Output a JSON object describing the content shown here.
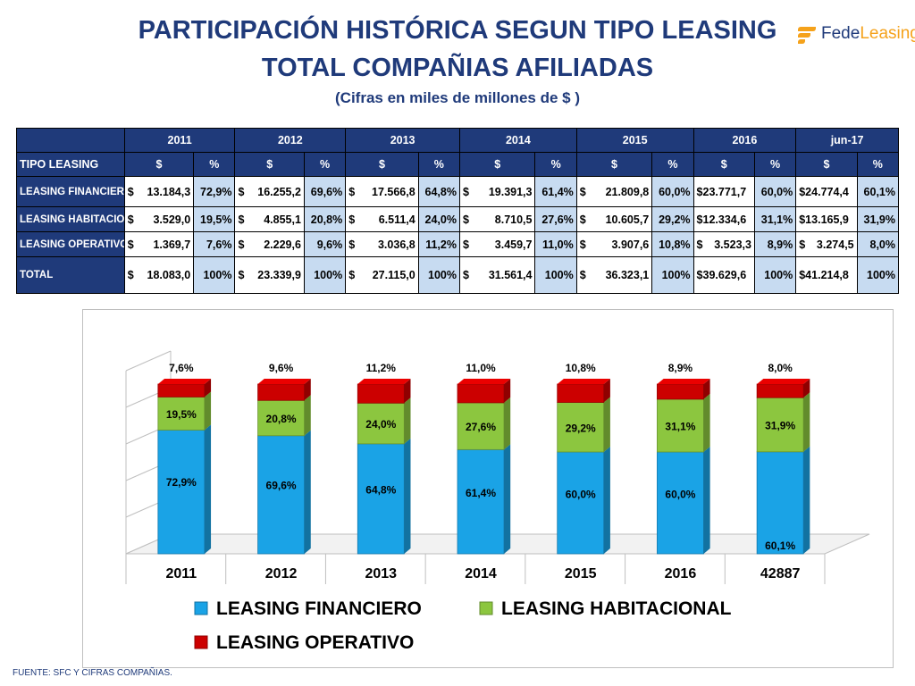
{
  "header": {
    "title_line1": "PARTICIPACIÓN HISTÓRICA SEGUN TIPO LEASING",
    "title_line2": "TOTAL COMPAÑIAS AFILIADAS",
    "subtitle": "(Cifras en miles de millones de $ )",
    "logo_part1": "Fede",
    "logo_part2": "Leasing"
  },
  "table": {
    "years": [
      "2011",
      "2012",
      "2013",
      "2014",
      "2015",
      "2016",
      "jun-17"
    ],
    "col_header": "TIPO LEASING",
    "currency_label": "$",
    "pct_label": "%",
    "rows": [
      {
        "label": "LEASING FINANCIERO",
        "cells": [
          [
            "$",
            "13.184,3",
            "72,9%"
          ],
          [
            "$",
            "16.255,2",
            "69,6%"
          ],
          [
            "$",
            "17.566,8",
            "64,8%"
          ],
          [
            "$",
            "19.391,3",
            "61,4%"
          ],
          [
            "$",
            "21.809,8",
            "60,0%"
          ],
          [
            "",
            "$23.771,7",
            "60,0%"
          ],
          [
            "",
            "$24.774,4",
            "60,1%"
          ]
        ]
      },
      {
        "label": "LEASING HABITACIONAL",
        "cells": [
          [
            "$",
            "3.529,0",
            "19,5%"
          ],
          [
            "$",
            "4.855,1",
            "20,8%"
          ],
          [
            "$",
            "6.511,4",
            "24,0%"
          ],
          [
            "$",
            "8.710,5",
            "27,6%"
          ],
          [
            "$",
            "10.605,7",
            "29,2%"
          ],
          [
            "",
            "$12.334,6",
            "31,1%"
          ],
          [
            "",
            "$13.165,9",
            "31,9%"
          ]
        ]
      },
      {
        "label": "LEASING OPERATIVO",
        "cells": [
          [
            "$",
            "1.369,7",
            "7,6%"
          ],
          [
            "$",
            "2.229,6",
            "9,6%"
          ],
          [
            "$",
            "3.036,8",
            "11,2%"
          ],
          [
            "$",
            "3.459,7",
            "11,0%"
          ],
          [
            "$",
            "3.907,6",
            "10,8%"
          ],
          [
            "$",
            "3.523,3",
            "8,9%"
          ],
          [
            "$",
            "3.274,5",
            "8,0%"
          ]
        ]
      },
      {
        "label": "TOTAL",
        "cells": [
          [
            "$",
            "18.083,0",
            "100%"
          ],
          [
            "$",
            "23.339,9",
            "100%"
          ],
          [
            "$",
            "27.115,0",
            "100%"
          ],
          [
            "$",
            "31.561,4",
            "100%"
          ],
          [
            "$",
            "36.323,1",
            "100%"
          ],
          [
            "",
            "$39.629,6",
            "100%"
          ],
          [
            "",
            "$41.214,8",
            "100%"
          ]
        ]
      }
    ]
  },
  "chart_data": {
    "type": "bar",
    "stacked": true,
    "categories": [
      "2011",
      "2012",
      "2013",
      "2014",
      "2015",
      "2016",
      "42887"
    ],
    "series": [
      {
        "name": "LEASING FINANCIERO",
        "values": [
          72.9,
          69.6,
          64.8,
          61.4,
          60.0,
          60.0,
          60.1
        ],
        "labels": [
          "72,9%",
          "69,6%",
          "64,8%",
          "61,4%",
          "60,0%",
          "60,0%",
          "60,1%"
        ],
        "color": "#1aa3e6"
      },
      {
        "name": "LEASING HABITACIONAL",
        "values": [
          19.5,
          20.8,
          24.0,
          27.6,
          29.2,
          31.1,
          31.9
        ],
        "labels": [
          "19,5%",
          "20,8%",
          "24,0%",
          "27,6%",
          "29,2%",
          "31,1%",
          "31,9%"
        ],
        "color": "#8cc63f"
      },
      {
        "name": "LEASING OPERATIVO",
        "values": [
          7.6,
          9.6,
          11.2,
          11.0,
          10.8,
          8.9,
          8.0
        ],
        "labels": [
          "7,6%",
          "9,6%",
          "11,2%",
          "11,0%",
          "10,8%",
          "8,9%",
          "8,0%"
        ],
        "color": "#cc0000"
      }
    ],
    "ylim": [
      0,
      100
    ],
    "legend_position": "bottom"
  },
  "footer": "FUENTE: SFC Y CIFRAS COMPAÑIAS.",
  "colors": {
    "navy": "#1f3a7a",
    "light_blue": "#c7dbf1",
    "orange": "#f5a21b"
  }
}
